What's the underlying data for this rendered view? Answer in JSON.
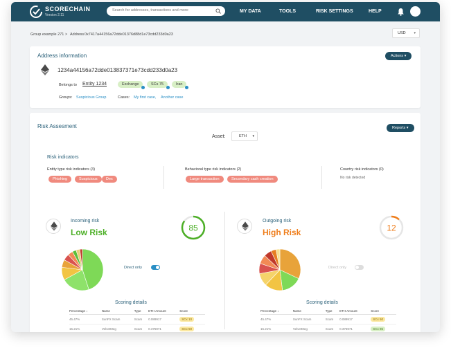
{
  "brand": {
    "name": "SCORECHAIN",
    "version": "Version 2.11"
  },
  "search": {
    "placeholder": "Search for addresses, transactions and more"
  },
  "nav": [
    "MY DATA",
    "TOOLS",
    "RISK SETTINGS",
    "HELP"
  ],
  "breadcrumb": {
    "group": "Group example 271",
    "sep": ">",
    "label": "Address",
    "address": "0x7417a44156a72dde01376d88d1e73cdd233d0a23"
  },
  "currency": {
    "value": "USD"
  },
  "address_info": {
    "title": "Address information",
    "actions_label": "Actions",
    "address": "1234a44156a72dde013837371e73cdd233d0a23",
    "belongs_label": "Belongs to",
    "entity": "Entity 1234",
    "tags": [
      "Exchange",
      "SCs 75",
      "Iran"
    ],
    "groups_label": "Groups:",
    "group": "Suspicious Group",
    "cases_label": "Cases:",
    "cases": [
      "My first case,",
      "Another case"
    ]
  },
  "risk": {
    "title": "Risk Assesment",
    "reports_label": "Reports",
    "asset_label": "Asset:",
    "asset_value": "ETH",
    "indicators_title": "Risk indicators",
    "entity_title": "Entity type risk indicators (3)",
    "entity_tags": [
      "Phishing",
      "Suspicious",
      "Dex"
    ],
    "behavioral_title": "Behavioral type risk indicators (2)",
    "behavioral_tags": [
      "Large transaction",
      "Secondary cash creation"
    ],
    "country_title": "Country risk indicators (0)",
    "country_empty": "No risk detected",
    "incoming": {
      "label": "Incoming risk",
      "level": "Low Risk",
      "score": "85",
      "score_fraction": 0.85,
      "color": "#4caf26",
      "direct_label": "Direct only",
      "direct_on": true
    },
    "outgoing": {
      "label": "Outgoing risk",
      "level": "High Risk",
      "score": "12",
      "score_fraction": 0.12,
      "color": "#ef7d1a",
      "direct_label": "Direct only",
      "direct_on": false
    },
    "scoring_title": "Scoring details",
    "columns": [
      "Percentage ↓",
      "Name",
      "Type",
      "ETH Amount",
      "Score"
    ],
    "incoming_rows": [
      {
        "pct": "45.47%",
        "name": "SunFX Scam",
        "type": "Scam",
        "amount": "0.089917",
        "score": "SCx 10",
        "tone": "y"
      },
      {
        "pct": "15.21%",
        "name": "VelvetMeg",
        "type": "Scam",
        "amount": "0.375971",
        "score": "SCx 50",
        "tone": "y"
      }
    ],
    "outgoing_rows": [
      {
        "pct": "45.47%",
        "name": "SunFX Scam",
        "type": "Scam",
        "amount": "0.089917",
        "score": "SCx 50",
        "tone": "y"
      },
      {
        "pct": "15.21%",
        "name": "VelvetMeg",
        "type": "Scam",
        "amount": "0.375971",
        "score": "SCx 85",
        "tone": "g"
      }
    ]
  },
  "pies": {
    "incoming": [
      {
        "value": 45,
        "color": "#7ed957"
      },
      {
        "value": 22,
        "color": "#8ee26a"
      },
      {
        "value": 10,
        "color": "#f2c443"
      },
      {
        "value": 6,
        "color": "#e8a33a"
      },
      {
        "value": 5,
        "color": "#d9534f"
      },
      {
        "value": 4,
        "color": "#f28a55"
      },
      {
        "value": 3,
        "color": "#5cbf3a"
      },
      {
        "value": 3,
        "color": "#e8d07a"
      },
      {
        "value": 2,
        "color": "#c0392b"
      }
    ],
    "outgoing": [
      {
        "value": 32,
        "color": "#e8a33a"
      },
      {
        "value": 16,
        "color": "#7ed957"
      },
      {
        "value": 14,
        "color": "#f2c443"
      },
      {
        "value": 10,
        "color": "#f5d36a"
      },
      {
        "value": 8,
        "color": "#d9534f"
      },
      {
        "value": 7,
        "color": "#f28a55"
      },
      {
        "value": 6,
        "color": "#c0392b"
      },
      {
        "value": 4,
        "color": "#e67e22"
      },
      {
        "value": 3,
        "color": "#f7e08e"
      }
    ]
  }
}
